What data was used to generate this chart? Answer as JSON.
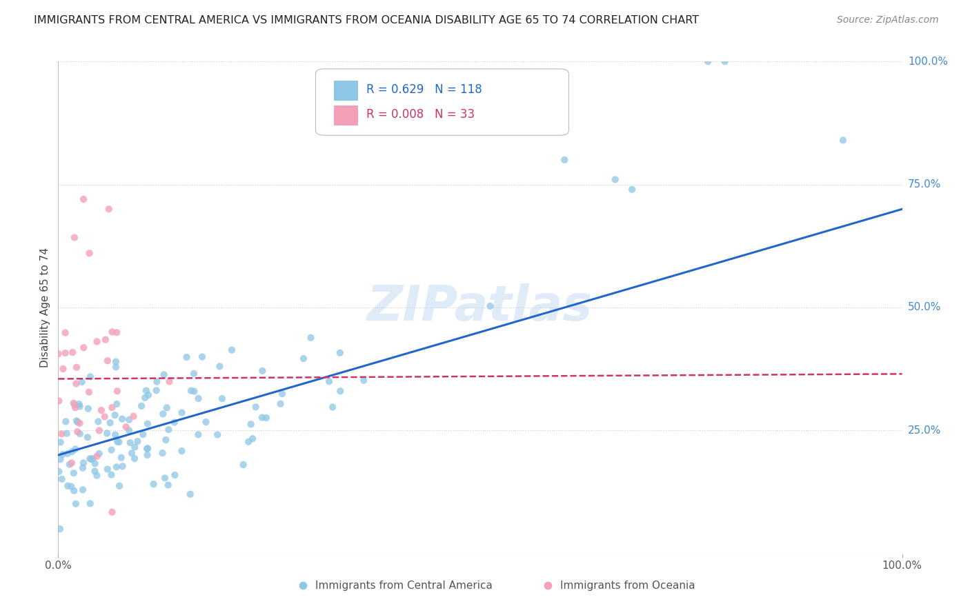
{
  "title": "IMMIGRANTS FROM CENTRAL AMERICA VS IMMIGRANTS FROM OCEANIA DISABILITY AGE 65 TO 74 CORRELATION CHART",
  "source": "Source: ZipAtlas.com",
  "ylabel": "Disability Age 65 to 74",
  "xlim": [
    0.0,
    1.0
  ],
  "ylim": [
    0.0,
    1.0
  ],
  "y_tick_values": [
    0.25,
    0.5,
    0.75,
    1.0
  ],
  "y_tick_labels": [
    "25.0%",
    "50.0%",
    "75.0%",
    "100.0%"
  ],
  "series1": {
    "label": "Immigrants from Central America",
    "R": 0.629,
    "N": 118,
    "color": "#8ec6e6",
    "line_color": "#2266cc"
  },
  "series2": {
    "label": "Immigrants from Oceania",
    "R": 0.008,
    "N": 33,
    "color": "#f4a0b8",
    "line_color": "#cc3366"
  },
  "blue_line": [
    0.0,
    0.2,
    1.0,
    0.7
  ],
  "pink_line": [
    0.0,
    0.355,
    1.0,
    0.365
  ],
  "watermark": "ZIPatlas",
  "background_color": "#ffffff",
  "grid_color": "#cccccc"
}
